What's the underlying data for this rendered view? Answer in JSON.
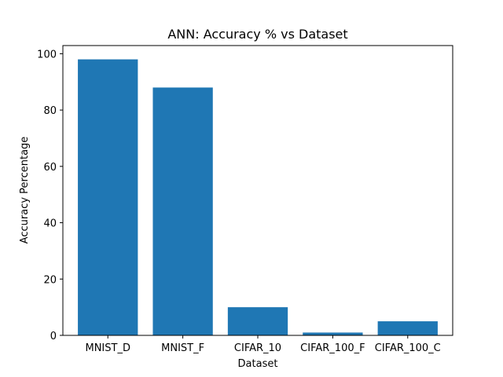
{
  "chart_data": {
    "type": "bar",
    "title": "ANN: Accuracy % vs Dataset",
    "xlabel": "Dataset",
    "ylabel": "Accuracy Percentage",
    "categories": [
      "MNIST_D",
      "MNIST_F",
      "CIFAR_10",
      "CIFAR_100_F",
      "CIFAR_100_C"
    ],
    "values": [
      98,
      88,
      10,
      1,
      5
    ],
    "ylim": [
      0,
      102.9
    ],
    "yticks": [
      0,
      20,
      40,
      60,
      80,
      100
    ],
    "grid": false,
    "bar_color": "#1f77b4"
  }
}
